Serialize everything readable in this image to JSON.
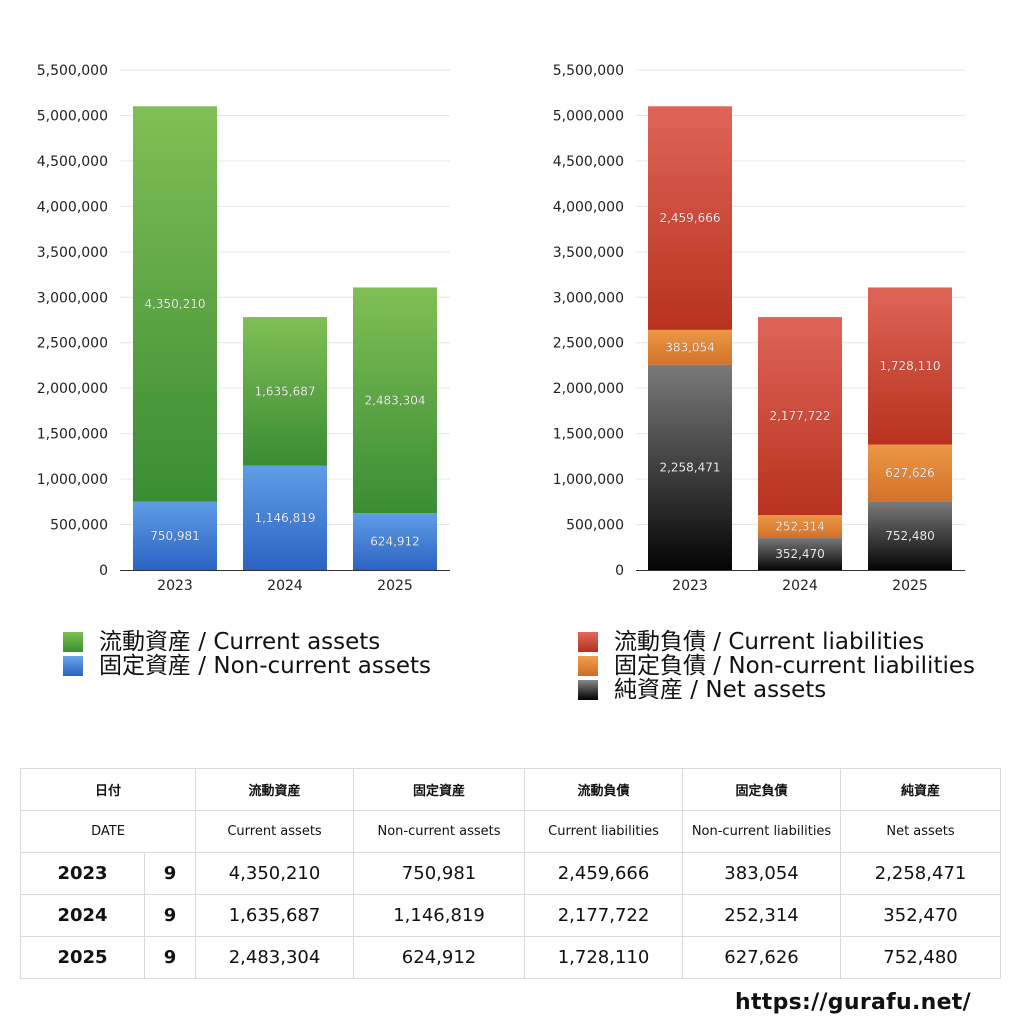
{
  "chart_data": [
    {
      "type": "bar",
      "stacked": true,
      "categories": [
        "2023",
        "2024",
        "2025"
      ],
      "ylim": [
        0,
        5500000
      ],
      "yticks": [
        "0",
        "500,000",
        "1,000,000",
        "1,500,000",
        "2,000,000",
        "2,500,000",
        "3,000,000",
        "3,500,000",
        "4,000,000",
        "4,500,000",
        "5,000,000",
        "5,500,000"
      ],
      "grid": true,
      "series": [
        {
          "name": "固定資産 / Non-current assets",
          "values": [
            750981,
            1146819,
            624912
          ],
          "labels": [
            "750,981",
            "1,146,819",
            "624,912"
          ],
          "color_top": "#5f9de6",
          "color_bottom": "#2b63c3"
        },
        {
          "name": "流動資産 / Current assets",
          "values": [
            4350210,
            1635687,
            2483304
          ],
          "labels": [
            "4,350,210",
            "1,635,687",
            "2,483,304"
          ],
          "color_top": "#80bf55",
          "color_bottom": "#3a8c34"
        }
      ]
    },
    {
      "type": "bar",
      "stacked": true,
      "categories": [
        "2023",
        "2024",
        "2025"
      ],
      "ylim": [
        0,
        5500000
      ],
      "yticks": [
        "0",
        "500,000",
        "1,000,000",
        "1,500,000",
        "2,000,000",
        "2,500,000",
        "3,000,000",
        "3,500,000",
        "4,000,000",
        "4,500,000",
        "5,000,000",
        "5,500,000"
      ],
      "grid": true,
      "series": [
        {
          "name": "純資産 / Net assets",
          "values": [
            2258471,
            352470,
            752480
          ],
          "labels": [
            "2,258,471",
            "352,470",
            "752,480"
          ],
          "color_top": "#7a7a7a",
          "color_bottom": "#050505"
        },
        {
          "name": "固定負債 / Non-current liabilities",
          "values": [
            383054,
            252314,
            627626
          ],
          "labels": [
            "383,054",
            "252,314",
            "627,626"
          ],
          "color_top": "#eb9845",
          "color_bottom": "#d3712a"
        },
        {
          "name": "流動負債 / Current liabilities",
          "values": [
            2459666,
            2177722,
            1728110
          ],
          "labels": [
            "2,459,666",
            "2,177,722",
            "1,728,110"
          ],
          "color_top": "#df6458",
          "color_bottom": "#b8321f"
        }
      ]
    }
  ],
  "legend_left": [
    {
      "label": "流動資産 / Current assets",
      "color": "#5aa844"
    },
    {
      "label": "固定資産 / Non-current assets",
      "color": "#3f7fd8"
    }
  ],
  "legend_right": [
    {
      "label": "流動負債 / Current liabilities",
      "color": "#d04a3a"
    },
    {
      "label": "固定負債 / Non-current liabilities",
      "color": "#e6883a"
    },
    {
      "label": "純資産 / Net assets",
      "color": "#333333"
    }
  ],
  "table": {
    "header_jp": [
      "日付",
      "",
      "流動資産",
      "固定資産",
      "流動負債",
      "固定負債",
      "純資産"
    ],
    "header_en": [
      "DATE",
      "",
      "Current assets",
      "Non-current assets",
      "Current liabilities",
      "Non-current liabilities",
      "Net assets"
    ],
    "rows": [
      {
        "year": "2023",
        "month": "9",
        "current_assets": "4,350,210",
        "noncurrent_assets": "750,981",
        "current_liabilities": "2,459,666",
        "noncurrent_liabilities": "383,054",
        "net_assets": "2,258,471"
      },
      {
        "year": "2024",
        "month": "9",
        "current_assets": "1,635,687",
        "noncurrent_assets": "1,146,819",
        "current_liabilities": "2,177,722",
        "noncurrent_liabilities": "252,314",
        "net_assets": "352,470"
      },
      {
        "year": "2025",
        "month": "9",
        "current_assets": "2,483,304",
        "noncurrent_assets": "624,912",
        "current_liabilities": "1,728,110",
        "noncurrent_liabilities": "627,626",
        "net_assets": "752,480"
      }
    ]
  },
  "site_url": "https://gurafu.net/"
}
